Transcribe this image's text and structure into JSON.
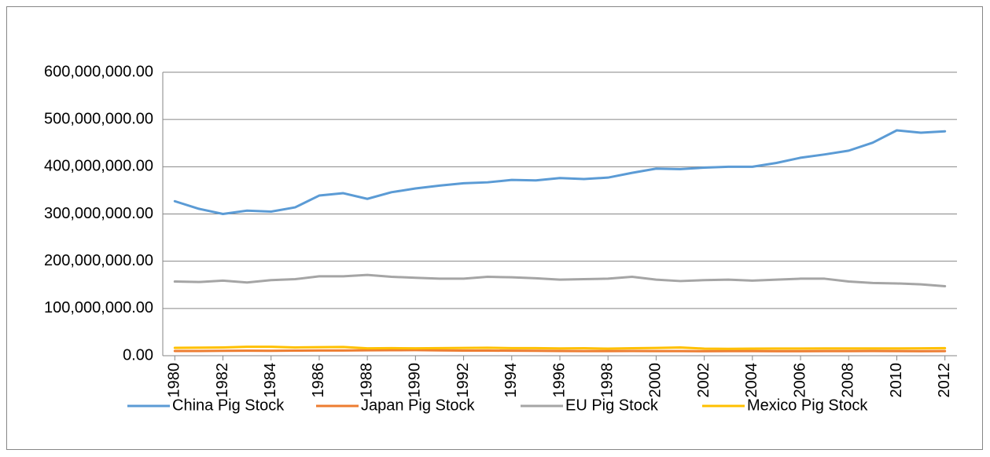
{
  "chart_data": {
    "type": "line",
    "x": [
      1980,
      1981,
      1982,
      1983,
      1984,
      1985,
      1986,
      1987,
      1988,
      1989,
      1990,
      1991,
      1992,
      1993,
      1994,
      1995,
      1996,
      1997,
      1998,
      1999,
      2000,
      2001,
      2002,
      2003,
      2004,
      2005,
      2006,
      2007,
      2008,
      2009,
      2010,
      2011,
      2012
    ],
    "xlim": [
      1979.5,
      2012.5
    ],
    "xticks": [
      1980,
      1982,
      1984,
      1986,
      1988,
      1990,
      1992,
      1994,
      1996,
      1998,
      2000,
      2002,
      2004,
      2006,
      2008,
      2010,
      2012
    ],
    "ylim": [
      0,
      600000000
    ],
    "yticks": [
      {
        "value": 0,
        "label": "0.00"
      },
      {
        "value": 100000000,
        "label": "100,000,000.00"
      },
      {
        "value": 200000000,
        "label": "200,000,000.00"
      },
      {
        "value": 300000000,
        "label": "300,000,000.00"
      },
      {
        "value": 400000000,
        "label": "400,000,000.00"
      },
      {
        "value": 500000000,
        "label": "500,000,000.00"
      },
      {
        "value": 600000000,
        "label": "600,000,000.00"
      }
    ],
    "grid": true,
    "legend": "bottom",
    "series": [
      {
        "name": "China Pig Stock",
        "color": "#5b9bd5",
        "values": [
          327000000,
          311000000,
          300000000,
          307000000,
          305000000,
          314000000,
          339000000,
          344000000,
          332000000,
          346000000,
          354000000,
          360000000,
          365000000,
          367000000,
          372000000,
          371000000,
          376000000,
          374000000,
          377000000,
          387000000,
          396000000,
          395000000,
          398000000,
          400000000,
          400000000,
          408000000,
          419000000,
          426000000,
          434000000,
          451000000,
          477000000,
          472000000,
          475000000
        ]
      },
      {
        "name": "Japan Pig Stock",
        "color": "#ed7d31",
        "values": [
          10000000,
          10000000,
          10300000,
          10500000,
          10400000,
          10700000,
          11000000,
          11000000,
          11500000,
          11600000,
          11800000,
          11300000,
          10900000,
          10800000,
          10600000,
          10300000,
          9900000,
          9800000,
          9800000,
          9900000,
          9800000,
          9800000,
          9600000,
          9700000,
          9700000,
          9600000,
          9600000,
          9700000,
          9700000,
          9900000,
          9800000,
          9500000,
          9700000
        ]
      },
      {
        "name": "EU Pig Stock",
        "color": "#a5a5a5",
        "values": [
          157000000,
          156000000,
          159000000,
          155000000,
          160000000,
          162000000,
          168000000,
          168000000,
          171000000,
          167000000,
          165000000,
          163000000,
          163000000,
          167000000,
          166000000,
          164000000,
          161000000,
          162000000,
          163000000,
          167000000,
          161000000,
          158000000,
          160000000,
          161000000,
          159000000,
          161000000,
          163000000,
          163000000,
          157000000,
          154000000,
          153000000,
          151000000,
          147000000
        ]
      },
      {
        "name": "Mexico Pig Stock",
        "color": "#ffc000",
        "values": [
          16700000,
          17000000,
          17500000,
          19000000,
          19000000,
          17500000,
          18000000,
          18500000,
          15500000,
          16000000,
          15500000,
          16000000,
          16500000,
          16900000,
          16000000,
          15900000,
          15400000,
          15700000,
          15000000,
          15700000,
          16500000,
          17500000,
          15000000,
          14500000,
          15000000,
          15200000,
          15200000,
          15400000,
          15400000,
          15300000,
          15400000,
          15500000,
          15900000
        ]
      }
    ]
  }
}
